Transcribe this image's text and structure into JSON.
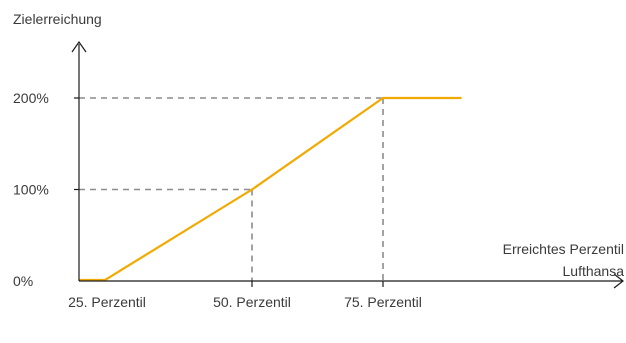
{
  "chart_data": {
    "type": "line",
    "ylabel": "Zielerreichung",
    "xlabel_lines": [
      "Erreichtes Perzentil",
      "Lufthansa"
    ],
    "x_ticks": [
      "25. Perzentil",
      "50. Perzentil",
      "75. Perzentil"
    ],
    "y_ticks": [
      "0%",
      "100%",
      "200%"
    ],
    "series": [
      {
        "x": [
          25,
          27,
          50,
          75,
          90
        ],
        "y": [
          0,
          0,
          100,
          200,
          200
        ]
      }
    ],
    "xlim": [
      25,
      75
    ],
    "ylim": [
      0,
      200
    ],
    "reference_lines": [
      {
        "x": 50,
        "y": 100
      },
      {
        "x": 75,
        "y": 200
      }
    ],
    "colors": {
      "line": "#f2a900",
      "axis": "#1a1a1a",
      "guide": "#8c8c8c",
      "text": "#3a3a3a"
    }
  }
}
